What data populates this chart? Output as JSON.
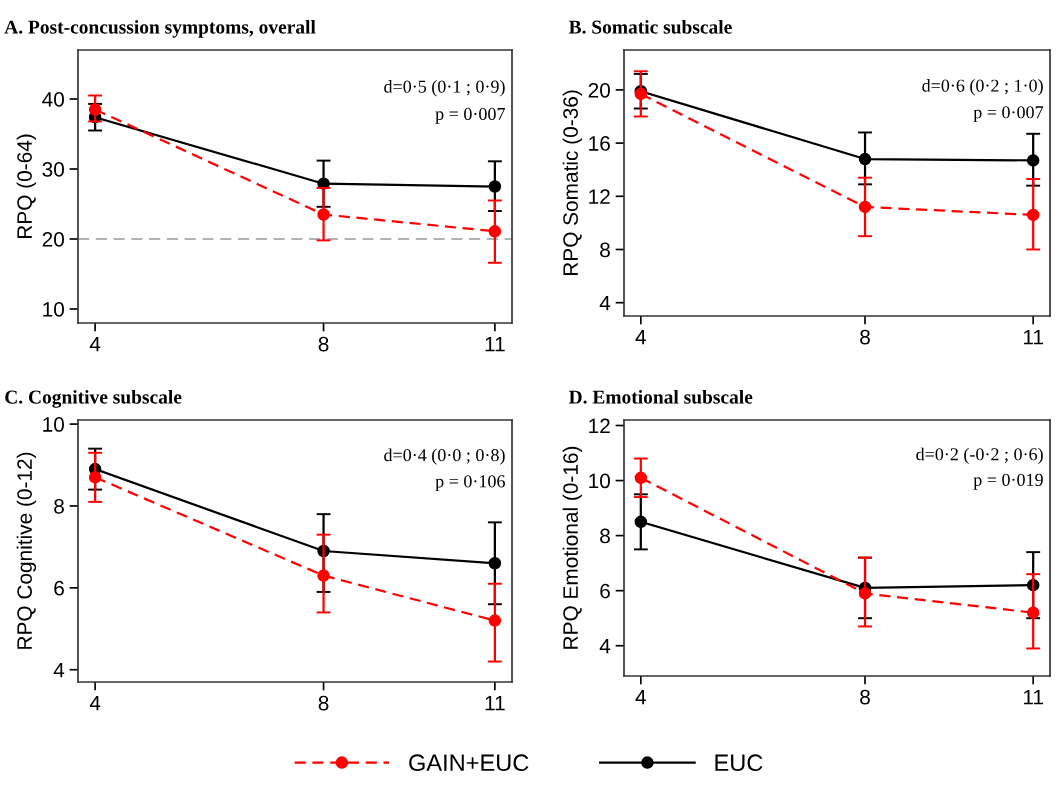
{
  "chart_data": [
    {
      "type": "line",
      "title": "A. Post-concussion symptoms, overall",
      "ylabel": "RPQ (0-64)",
      "x": [
        4,
        8,
        11
      ],
      "xlim": [
        3.7,
        11.3
      ],
      "xticks": [
        4,
        8,
        11
      ],
      "ylim": [
        8,
        47
      ],
      "yticks": [
        10,
        20,
        30,
        40
      ],
      "marker": "circle",
      "legend": "bottom",
      "grid": false,
      "annotations": [
        "d=0·5 (0·1 ; 0·9)",
        "p = 0·007"
      ],
      "ref_lines": [
        {
          "axis": "y",
          "value": 20,
          "label": null,
          "color": "#b3b3b3",
          "line_style": "dashed"
        }
      ],
      "series": [
        {
          "name": "GAIN+EUC",
          "color": "#ff0000",
          "line_style": "dashed",
          "values": [
            38.5,
            23.5,
            21.1
          ],
          "errors": [
            [
              36.8,
              40.5
            ],
            [
              19.8,
              27.3
            ],
            [
              16.6,
              25.5
            ]
          ]
        },
        {
          "name": "EUC",
          "color": "#000000",
          "line_style": "solid",
          "values": [
            37.4,
            27.9,
            27.5
          ],
          "errors": [
            [
              35.5,
              39.3
            ],
            [
              24.6,
              31.2
            ],
            [
              24.0,
              31.1
            ]
          ]
        }
      ]
    },
    {
      "type": "line",
      "title": "B. Somatic subscale",
      "ylabel": "RPQ Somatic (0-36)",
      "x": [
        4,
        8,
        11
      ],
      "xlim": [
        3.7,
        11.3
      ],
      "xticks": [
        4,
        8,
        11
      ],
      "ylim": [
        3,
        23
      ],
      "yticks": [
        4,
        8,
        12,
        16,
        20
      ],
      "marker": "circle",
      "grid": false,
      "annotations": [
        "d=0·6 (0·2 ; 1·0)",
        "p = 0·007"
      ],
      "series": [
        {
          "color": "#ff0000",
          "line_style": "dashed",
          "values": [
            19.7,
            11.2,
            10.6
          ],
          "errors": [
            [
              18.0,
              21.4
            ],
            [
              9.0,
              13.4
            ],
            [
              8.0,
              13.3
            ]
          ]
        },
        {
          "color": "#000000",
          "line_style": "solid",
          "values": [
            19.9,
            14.8,
            14.7
          ],
          "errors": [
            [
              18.6,
              21.2
            ],
            [
              12.9,
              16.8
            ],
            [
              12.8,
              16.7
            ]
          ]
        }
      ]
    },
    {
      "type": "line",
      "title": "C. Cognitive subscale",
      "ylabel": "RPQ Cognitive (0-12)",
      "x": [
        4,
        8,
        11
      ],
      "xlim": [
        3.7,
        11.3
      ],
      "xticks": [
        4,
        8,
        11
      ],
      "ylim": [
        3.7,
        10.1
      ],
      "yticks": [
        4,
        6,
        8,
        10
      ],
      "marker": "circle",
      "grid": false,
      "annotations": [
        "d=0·4 (0·0 ; 0·8)",
        "p = 0·106"
      ],
      "series": [
        {
          "color": "#ff0000",
          "line_style": "dashed",
          "values": [
            8.7,
            6.3,
            5.2
          ],
          "errors": [
            [
              8.1,
              9.3
            ],
            [
              5.4,
              7.3
            ],
            [
              4.2,
              6.1
            ]
          ]
        },
        {
          "color": "#000000",
          "line_style": "solid",
          "values": [
            8.9,
            6.9,
            6.6
          ],
          "errors": [
            [
              8.4,
              9.4
            ],
            [
              5.9,
              7.8
            ],
            [
              5.6,
              7.6
            ]
          ]
        }
      ]
    },
    {
      "type": "line",
      "title": "D. Emotional subscale",
      "ylabel": "RPQ Emotional (0-16)",
      "x": [
        4,
        8,
        11
      ],
      "xlim": [
        3.7,
        11.3
      ],
      "xticks": [
        4,
        8,
        11
      ],
      "ylim": [
        2.9,
        12.2
      ],
      "yticks": [
        4,
        6,
        8,
        10,
        12
      ],
      "marker": "circle",
      "grid": false,
      "annotations": [
        "d=0·2 (-0·2 ; 0·6)",
        "p = 0·019"
      ],
      "series": [
        {
          "color": "#ff0000",
          "line_style": "dashed",
          "values": [
            10.1,
            5.9,
            5.2
          ],
          "errors": [
            [
              9.4,
              10.8
            ],
            [
              4.7,
              7.2
            ],
            [
              3.9,
              6.6
            ]
          ]
        },
        {
          "color": "#000000",
          "line_style": "solid",
          "values": [
            8.5,
            6.1,
            6.2
          ],
          "errors": [
            [
              7.5,
              9.5
            ],
            [
              5.0,
              7.2
            ],
            [
              5.0,
              7.4
            ]
          ]
        }
      ]
    }
  ]
}
